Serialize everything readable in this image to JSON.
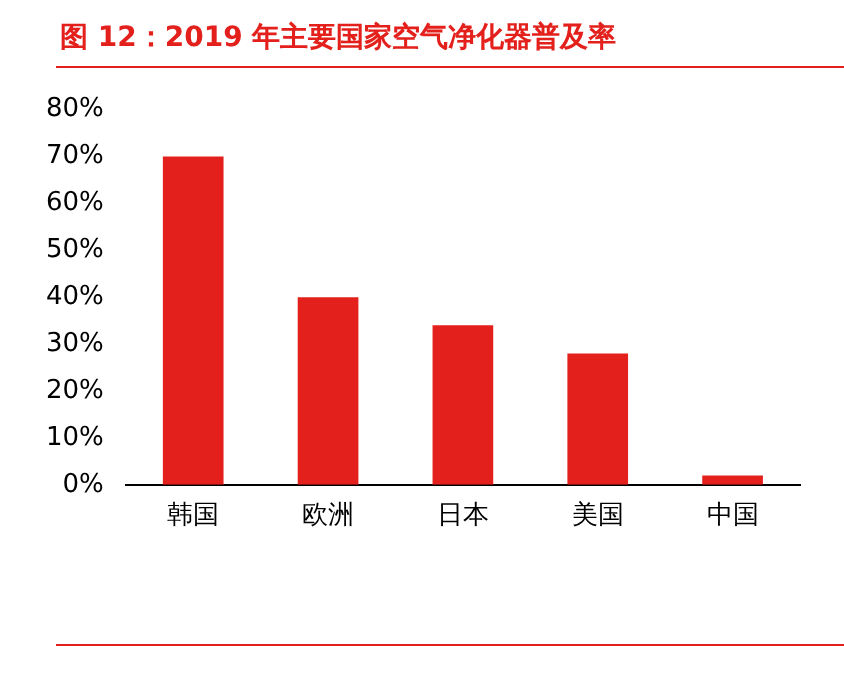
{
  "chart_data": {
    "type": "bar",
    "title": "图 12：2019 年主要国家空气净化器普及率",
    "categories": [
      "韩国",
      "欧洲",
      "日本",
      "美国",
      "中国"
    ],
    "values": [
      70,
      40,
      34,
      28,
      2
    ],
    "color": "#e3201b",
    "ylim": [
      0,
      80
    ],
    "yticks": [
      {
        "value": 0,
        "label": "0%"
      },
      {
        "value": 10,
        "label": "10%"
      },
      {
        "value": 20,
        "label": "20%"
      },
      {
        "value": 30,
        "label": "30%"
      },
      {
        "value": 40,
        "label": "40%"
      },
      {
        "value": 50,
        "label": "50%"
      },
      {
        "value": 60,
        "label": "60%"
      },
      {
        "value": 70,
        "label": "70%"
      },
      {
        "value": 80,
        "label": "80%"
      }
    ],
    "grid": false,
    "legend": false
  }
}
